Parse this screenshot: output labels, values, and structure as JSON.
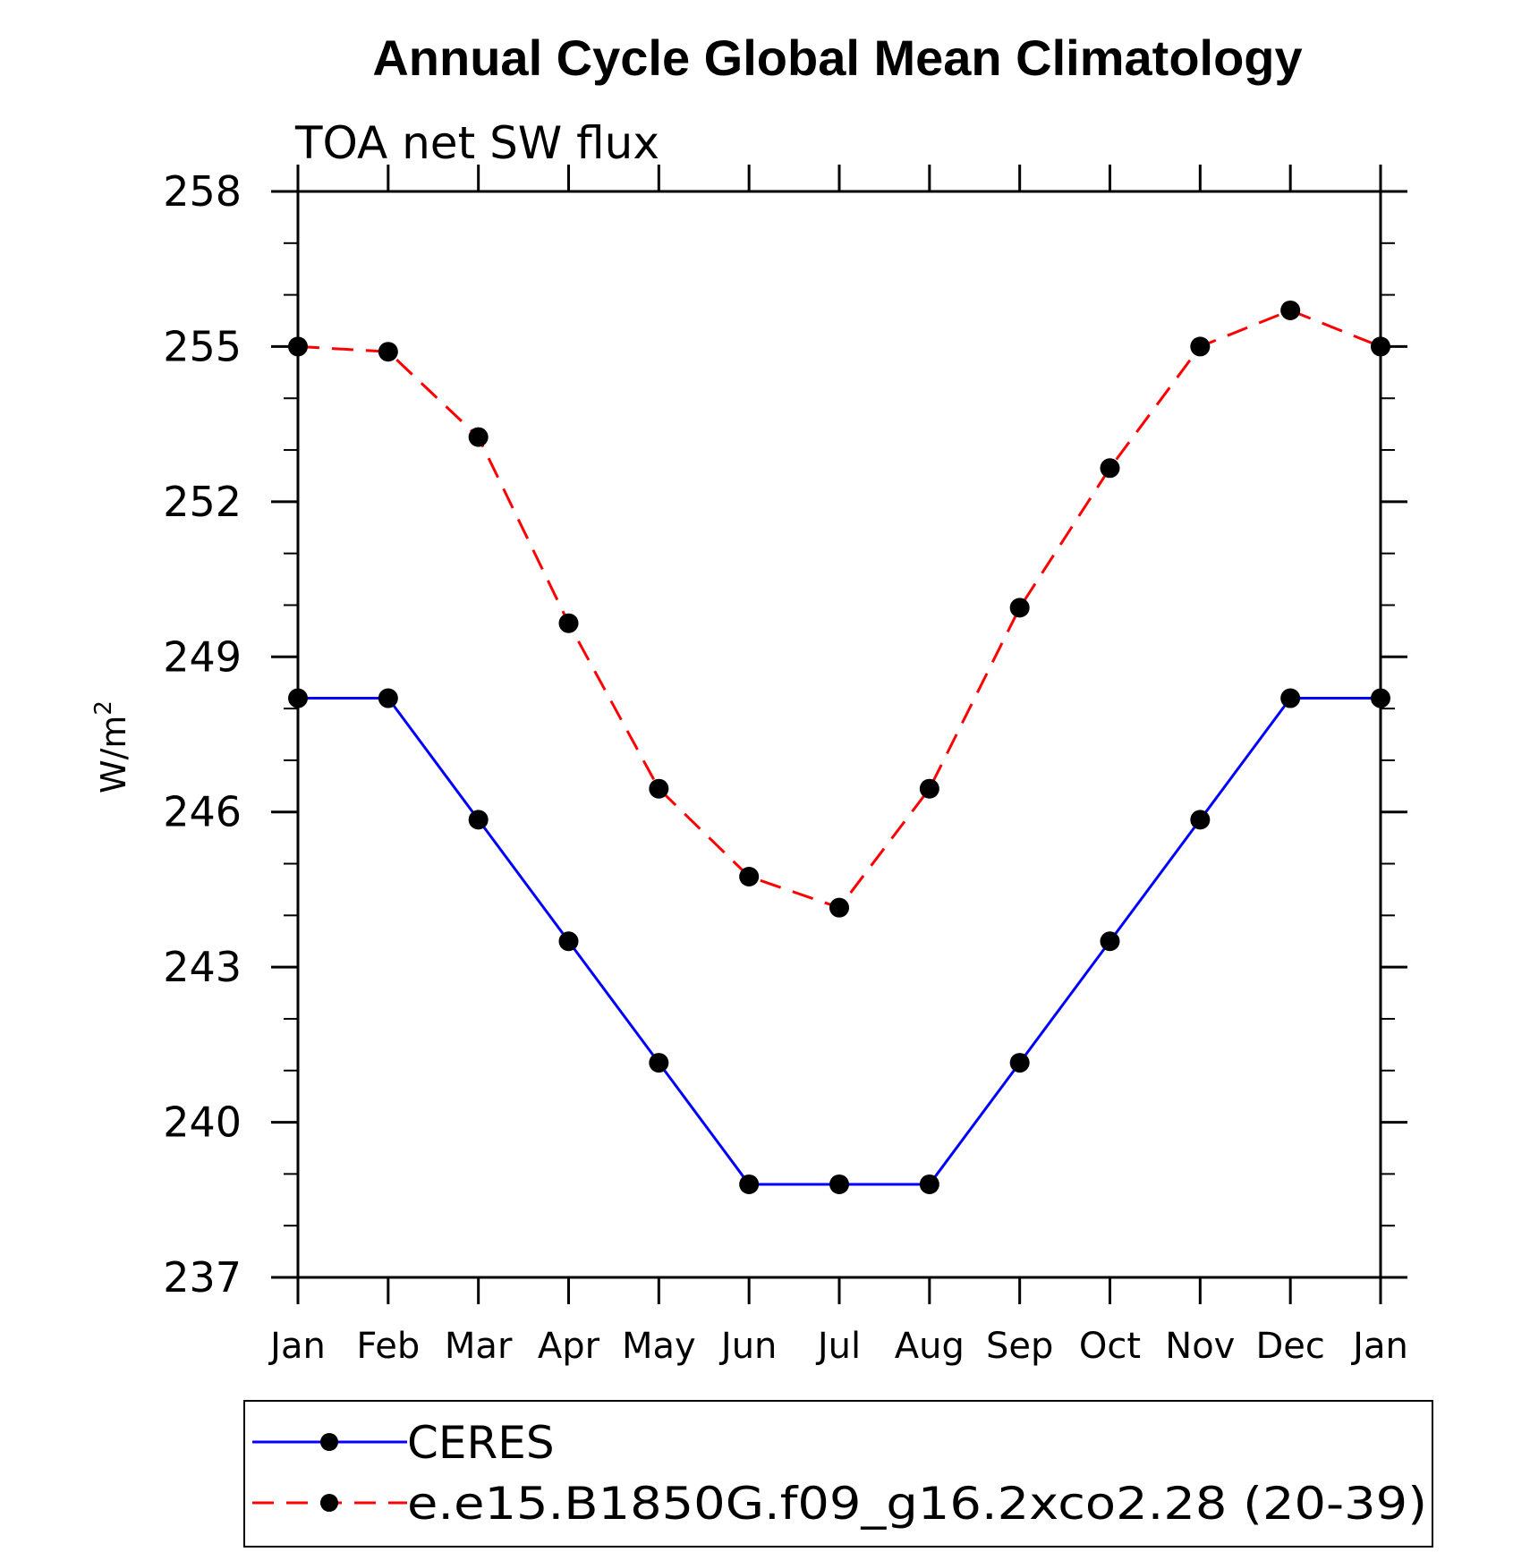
{
  "chart_data": {
    "type": "line",
    "title": "Annual Cycle Global Mean Climatology",
    "subtitle": "TOA net SW flux",
    "ylabel_base": "W/m",
    "ylabel_sup": "2",
    "xlabel": "",
    "categories": [
      "Jan",
      "Feb",
      "Mar",
      "Apr",
      "May",
      "Jun",
      "Jul",
      "Aug",
      "Sep",
      "Oct",
      "Nov",
      "Dec",
      "Jan"
    ],
    "ylim": [
      237,
      258
    ],
    "yticks": [
      237,
      240,
      243,
      246,
      249,
      252,
      255,
      258
    ],
    "ytick_labels": [
      "237",
      "240",
      "243",
      "246",
      "249",
      "252",
      "255",
      "258"
    ],
    "grid": false,
    "legend_position": "bottom",
    "series": [
      {
        "name": "CERES",
        "color": "#0000ff",
        "dash": "solid",
        "marker": "circle",
        "values": [
          248.2,
          248.2,
          245.85,
          243.5,
          241.15,
          238.8,
          238.8,
          238.8,
          241.15,
          243.5,
          245.85,
          248.2,
          248.2
        ]
      },
      {
        "name": "e.e15.B1850G.f09_g16.2xco2.28 (20-39)",
        "color": "#ff0000",
        "dash": "dashed",
        "marker": "circle",
        "values": [
          255.0,
          254.9,
          253.25,
          249.65,
          246.45,
          244.75,
          244.15,
          246.45,
          249.95,
          252.65,
          255.0,
          255.7,
          255.0
        ]
      }
    ]
  }
}
